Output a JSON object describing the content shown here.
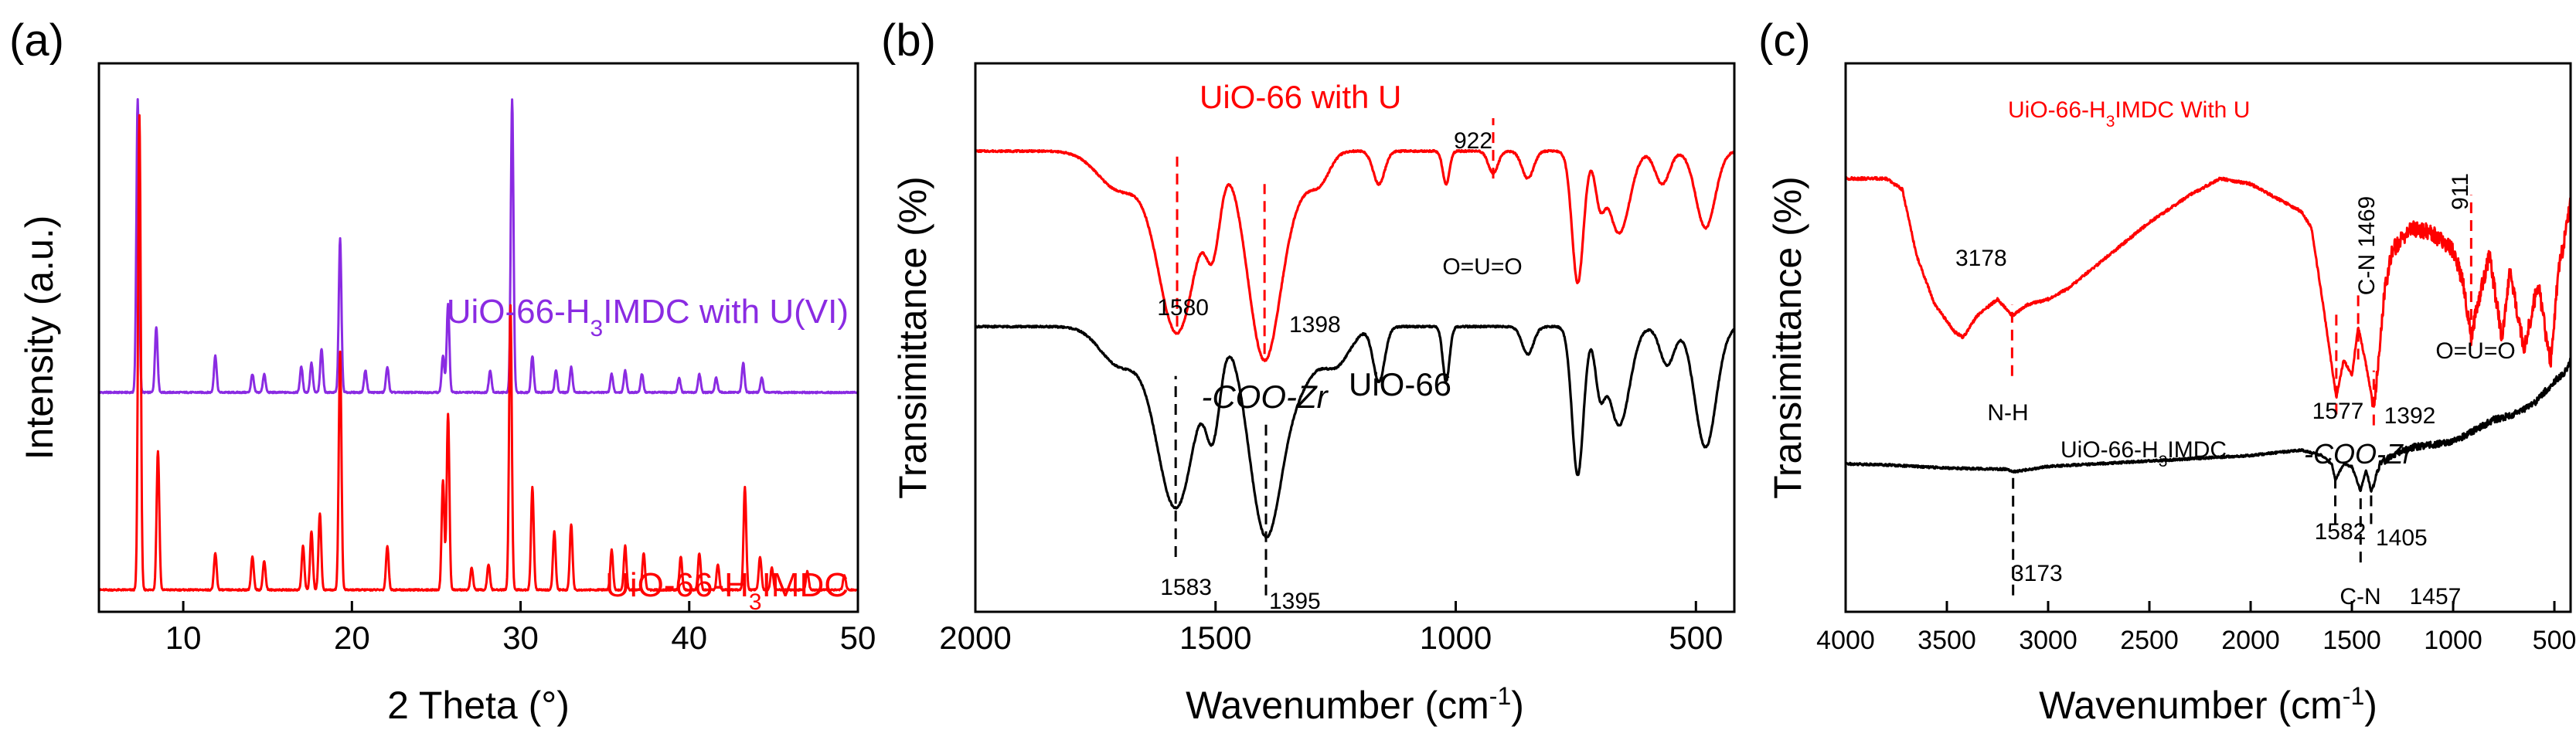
{
  "colors": {
    "purple": "#8a2be2",
    "red": "#ff0000",
    "black": "#000000"
  },
  "chart_data": [
    {
      "panel_label": "(a)",
      "type": "line",
      "xlabel": "2 Theta (°)",
      "ylabel": "Intensity (a.u.)",
      "xlim": [
        5,
        50
      ],
      "xticks": [
        "10",
        "20",
        "30",
        "40",
        "50"
      ],
      "xtick_values": [
        10,
        20,
        30,
        40,
        50
      ],
      "y_ticks_shown": false,
      "series": [
        {
          "label_main": "UiO-66-H",
          "label_sub": "3",
          "label_tail": "IMDC with U(VI)",
          "color": "#8a2be2",
          "baseline": 0.6,
          "peaks": [
            [
              7.3,
              0.8
            ],
            [
              8.4,
              0.18
            ],
            [
              11.9,
              0.1
            ],
            [
              14.1,
              0.05
            ],
            [
              14.8,
              0.05
            ],
            [
              17.0,
              0.07
            ],
            [
              17.6,
              0.08
            ],
            [
              18.2,
              0.12
            ],
            [
              19.3,
              0.42
            ],
            [
              20.8,
              0.06
            ],
            [
              22.1,
              0.07
            ],
            [
              25.4,
              0.1
            ],
            [
              25.7,
              0.24
            ],
            [
              28.2,
              0.06
            ],
            [
              29.5,
              0.8
            ],
            [
              30.7,
              0.1
            ],
            [
              32.1,
              0.06
            ],
            [
              33.0,
              0.07
            ],
            [
              35.4,
              0.05
            ],
            [
              36.2,
              0.06
            ],
            [
              37.2,
              0.05
            ],
            [
              39.4,
              0.04
            ],
            [
              40.6,
              0.05
            ],
            [
              41.6,
              0.04
            ],
            [
              43.2,
              0.08
            ],
            [
              44.3,
              0.04
            ]
          ]
        },
        {
          "label_main": "UiO-66-H",
          "label_sub": "3",
          "label_tail": "IMDC",
          "color": "#ff0000",
          "baseline": 0.06,
          "peaks": [
            [
              7.4,
              1.3
            ],
            [
              8.5,
              0.38
            ],
            [
              11.9,
              0.1
            ],
            [
              14.1,
              0.09
            ],
            [
              14.8,
              0.08
            ],
            [
              17.1,
              0.12
            ],
            [
              17.6,
              0.16
            ],
            [
              18.1,
              0.21
            ],
            [
              19.3,
              0.65
            ],
            [
              22.1,
              0.12
            ],
            [
              25.4,
              0.3
            ],
            [
              25.7,
              0.48
            ],
            [
              27.1,
              0.06
            ],
            [
              28.1,
              0.07
            ],
            [
              29.4,
              0.78
            ],
            [
              30.7,
              0.28
            ],
            [
              32.0,
              0.16
            ],
            [
              33.0,
              0.18
            ],
            [
              35.4,
              0.11
            ],
            [
              36.2,
              0.12
            ],
            [
              37.3,
              0.1
            ],
            [
              39.5,
              0.09
            ],
            [
              40.6,
              0.1
            ],
            [
              41.7,
              0.07
            ],
            [
              43.3,
              0.28
            ],
            [
              44.2,
              0.09
            ],
            [
              44.9,
              0.06
            ],
            [
              47.0,
              0.05
            ],
            [
              49.2,
              0.04
            ]
          ]
        }
      ]
    },
    {
      "panel_label": "(b)",
      "type": "line",
      "xlabel": "Wavenumber (cm",
      "xlabel_sup": "-1",
      "xlabel_close": ")",
      "ylabel": "Transimittance (%)",
      "xlim": [
        2000,
        420
      ],
      "xticks": [
        "2000",
        "1500",
        "1000",
        "500"
      ],
      "xtick_values": [
        2000,
        1500,
        1000,
        500
      ],
      "y_ticks_shown": false,
      "series": [
        {
          "name": "UiO-66 with U",
          "color": "#ff0000",
          "baseline": 0.84,
          "slope": 0.0,
          "bands": [
            [
              1700,
              0.07,
              45
            ],
            [
              1580,
              0.33,
              40
            ],
            [
              1505,
              0.14,
              15
            ],
            [
              1398,
              0.38,
              35
            ],
            [
              1320,
              0.05,
              30
            ],
            [
              1280,
              0.04,
              20
            ],
            [
              1160,
              0.06,
              12
            ],
            [
              1020,
              0.06,
              7
            ],
            [
              922,
              0.04,
              10
            ],
            [
              850,
              0.05,
              12
            ],
            [
              746,
              0.24,
              12
            ],
            [
              700,
              0.08,
              10
            ],
            [
              660,
              0.15,
              22
            ],
            [
              570,
              0.06,
              15
            ],
            [
              480,
              0.14,
              20
            ]
          ]
        },
        {
          "name": "UiO-66",
          "color": "#000000",
          "baseline": 0.52,
          "slope": 0.0,
          "bands": [
            [
              1700,
              0.07,
              40
            ],
            [
              1583,
              0.33,
              40
            ],
            [
              1505,
              0.16,
              15
            ],
            [
              1395,
              0.38,
              35
            ],
            [
              1320,
              0.08,
              30
            ],
            [
              1250,
              0.07,
              30
            ],
            [
              1160,
              0.1,
              12
            ],
            [
              1020,
              0.1,
              7
            ],
            [
              850,
              0.05,
              12
            ],
            [
              746,
              0.27,
              12
            ],
            [
              700,
              0.1,
              10
            ],
            [
              660,
              0.18,
              22
            ],
            [
              560,
              0.07,
              15
            ],
            [
              480,
              0.22,
              22
            ]
          ]
        }
      ],
      "annotations": [
        {
          "text": "UiO-66 with U",
          "color": "#ff0000"
        },
        {
          "text": "922",
          "color": "#000000",
          "x": 922
        },
        {
          "text": "1580",
          "color": "#000000",
          "x": 1580
        },
        {
          "text": "1398",
          "color": "#000000",
          "x": 1398
        },
        {
          "text": "O=U=O",
          "color": "#000000"
        },
        {
          "text": "-COO-Zr",
          "color": "#000000",
          "italic": true
        },
        {
          "text": "UiO-66",
          "color": "#000000"
        },
        {
          "text": "1583",
          "color": "#000000",
          "x": 1583
        },
        {
          "text": "1395",
          "color": "#000000",
          "x": 1395
        }
      ],
      "dashed_markers": [
        {
          "x": 1580,
          "color": "#ff0000"
        },
        {
          "x": 1398,
          "color": "#ff0000"
        },
        {
          "x": 922,
          "color": "#ff0000"
        },
        {
          "x": 1583,
          "color": "#000000"
        },
        {
          "x": 1395,
          "color": "#000000"
        }
      ]
    },
    {
      "panel_label": "(c)",
      "type": "line",
      "xlabel": "Wavenumber (cm",
      "xlabel_sup": "-1",
      "xlabel_close": ")",
      "ylabel": "Transimittance (%)",
      "xlim": [
        4000,
        420
      ],
      "xticks": [
        "4000",
        "3500",
        "3000",
        "2500",
        "2000",
        "1500",
        "1000",
        "500"
      ],
      "xtick_values": [
        4000,
        3500,
        3000,
        2500,
        2000,
        1500,
        1000,
        500
      ],
      "y_ticks_shown": false,
      "series": [
        {
          "name": "UiO-66-H3IMDC With U",
          "color": "#ff0000",
          "anchors": [
            [
              4000,
              0.79
            ],
            [
              3800,
              0.79
            ],
            [
              3720,
              0.77
            ],
            [
              3650,
              0.65
            ],
            [
              3560,
              0.56
            ],
            [
              3460,
              0.51
            ],
            [
              3420,
              0.5
            ],
            [
              3350,
              0.54
            ],
            [
              3250,
              0.57
            ],
            [
              3178,
              0.54
            ],
            [
              3100,
              0.56
            ],
            [
              3000,
              0.57
            ],
            [
              2900,
              0.59
            ],
            [
              2700,
              0.65
            ],
            [
              2500,
              0.71
            ],
            [
              2300,
              0.76
            ],
            [
              2150,
              0.79
            ],
            [
              2000,
              0.78
            ],
            [
              1850,
              0.75
            ],
            [
              1750,
              0.73
            ],
            [
              1700,
              0.7
            ],
            [
              1650,
              0.58
            ],
            [
              1600,
              0.45
            ],
            [
              1577,
              0.39
            ],
            [
              1540,
              0.46
            ],
            [
              1500,
              0.43
            ],
            [
              1469,
              0.52
            ],
            [
              1430,
              0.45
            ],
            [
              1392,
              0.37
            ],
            [
              1340,
              0.58
            ],
            [
              1300,
              0.66
            ],
            [
              1200,
              0.7
            ],
            [
              1100,
              0.69
            ],
            [
              1000,
              0.66
            ],
            [
              950,
              0.6
            ],
            [
              911,
              0.5
            ],
            [
              880,
              0.56
            ],
            [
              820,
              0.65
            ],
            [
              760,
              0.5
            ],
            [
              720,
              0.62
            ],
            [
              650,
              0.48
            ],
            [
              580,
              0.6
            ],
            [
              520,
              0.45
            ],
            [
              480,
              0.62
            ],
            [
              440,
              0.7
            ],
            [
              420,
              0.75
            ]
          ]
        },
        {
          "name": "UiO-66-H3IMDC",
          "color": "#000000",
          "anchors": [
            [
              4000,
              0.27
            ],
            [
              3800,
              0.268
            ],
            [
              3500,
              0.262
            ],
            [
              3200,
              0.26
            ],
            [
              3173,
              0.255
            ],
            [
              3000,
              0.265
            ],
            [
              2500,
              0.275
            ],
            [
              2000,
              0.285
            ],
            [
              1750,
              0.295
            ],
            [
              1650,
              0.285
            ],
            [
              1600,
              0.27
            ],
            [
              1582,
              0.24
            ],
            [
              1540,
              0.27
            ],
            [
              1500,
              0.265
            ],
            [
              1457,
              0.22
            ],
            [
              1430,
              0.26
            ],
            [
              1405,
              0.22
            ],
            [
              1360,
              0.27
            ],
            [
              1300,
              0.285
            ],
            [
              1200,
              0.3
            ],
            [
              1000,
              0.31
            ],
            [
              900,
              0.33
            ],
            [
              800,
              0.35
            ],
            [
              700,
              0.36
            ],
            [
              600,
              0.38
            ],
            [
              500,
              0.42
            ],
            [
              440,
              0.44
            ],
            [
              420,
              0.46
            ]
          ]
        }
      ],
      "annotations": [
        {
          "text_main": "UiO-66-H",
          "text_sub": "3",
          "text_tail": "IMDC With  U",
          "color": "#ff0000"
        },
        {
          "text": "3178",
          "x": 3178
        },
        {
          "text": "C-N 1469",
          "x": 1469
        },
        {
          "text": "911",
          "x": 911
        },
        {
          "text": "O=U=O"
        },
        {
          "text": "1577",
          "x": 1577
        },
        {
          "text": "1392",
          "x": 1392
        },
        {
          "text": "N-H"
        },
        {
          "text_main": "UiO-66-H",
          "text_sub": "3",
          "text_tail": "IMDC"
        },
        {
          "text": "-COO-Zr",
          "italic": true
        },
        {
          "text": "1582",
          "x": 1582
        },
        {
          "text": "1405",
          "x": 1405
        },
        {
          "text": "3173",
          "x": 3173
        },
        {
          "text": "C-N"
        },
        {
          "text": "1457",
          "x": 1457
        }
      ],
      "dashed_markers": [
        {
          "x": 3178,
          "color": "#ff0000"
        },
        {
          "x": 1577,
          "color": "#ff0000"
        },
        {
          "x": 1469,
          "color": "#ff0000"
        },
        {
          "x": 1392,
          "color": "#ff0000"
        },
        {
          "x": 911,
          "color": "#ff0000"
        },
        {
          "x": 3173,
          "color": "#000000"
        },
        {
          "x": 1582,
          "color": "#000000"
        },
        {
          "x": 1457,
          "color": "#000000"
        },
        {
          "x": 1405,
          "color": "#000000"
        }
      ]
    }
  ]
}
